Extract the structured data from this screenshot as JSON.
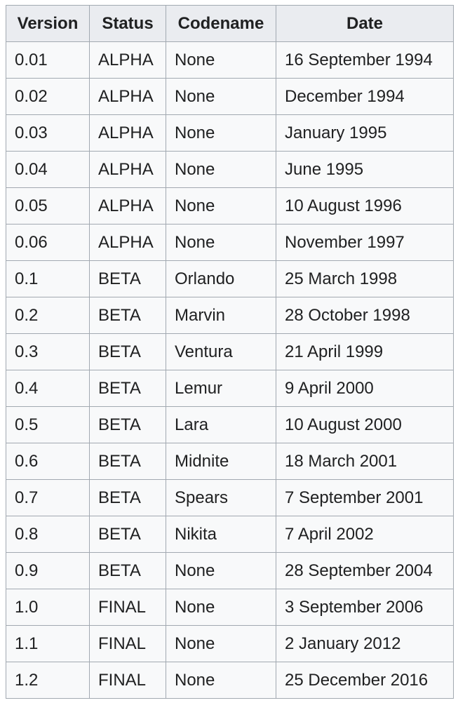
{
  "table": {
    "headers": [
      "Version",
      "Status",
      "Codename",
      "Date"
    ],
    "rows": [
      [
        "0.01",
        "ALPHA",
        "None",
        "16 September 1994"
      ],
      [
        "0.02",
        "ALPHA",
        "None",
        "December 1994"
      ],
      [
        "0.03",
        "ALPHA",
        "None",
        "January 1995"
      ],
      [
        "0.04",
        "ALPHA",
        "None",
        "June 1995"
      ],
      [
        "0.05",
        "ALPHA",
        "None",
        "10 August 1996"
      ],
      [
        "0.06",
        "ALPHA",
        "None",
        "November 1997"
      ],
      [
        "0.1",
        "BETA",
        "Orlando",
        "25 March 1998"
      ],
      [
        "0.2",
        "BETA",
        "Marvin",
        "28 October 1998"
      ],
      [
        "0.3",
        "BETA",
        "Ventura",
        "21 April 1999"
      ],
      [
        "0.4",
        "BETA",
        "Lemur",
        "9 April 2000"
      ],
      [
        "0.5",
        "BETA",
        "Lara",
        "10 August 2000"
      ],
      [
        "0.6",
        "BETA",
        "Midnite",
        "18 March 2001"
      ],
      [
        "0.7",
        "BETA",
        "Spears",
        "7 September 2001"
      ],
      [
        "0.8",
        "BETA",
        "Nikita",
        "7 April 2002"
      ],
      [
        "0.9",
        "BETA",
        "None",
        "28 September 2004"
      ],
      [
        "1.0",
        "FINAL",
        "None",
        "3 September 2006"
      ],
      [
        "1.1",
        "FINAL",
        "None",
        "2 January 2012"
      ],
      [
        "1.2",
        "FINAL",
        "None",
        "25 December 2016"
      ]
    ]
  }
}
